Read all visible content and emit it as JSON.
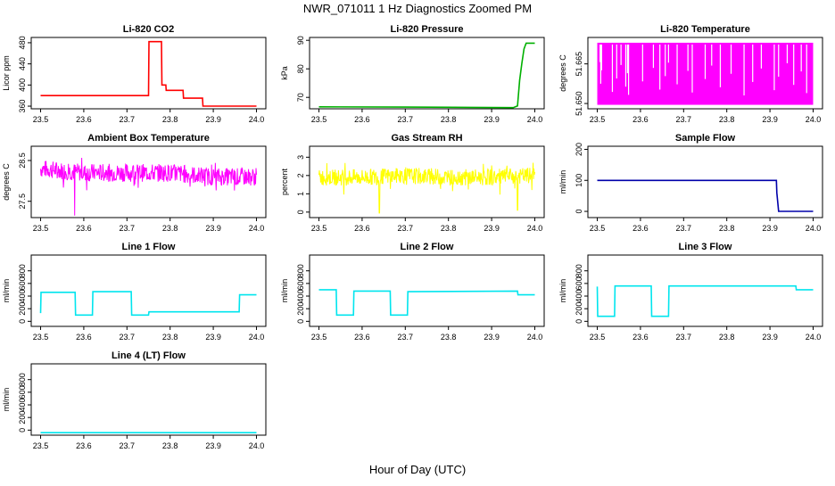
{
  "figure": {
    "title": "NWR_071011  1 Hz Diagnostics Zoomed PM",
    "xlabel": "Hour of Day (UTC)"
  },
  "chart_data": [
    {
      "id": "co2",
      "type": "line",
      "title": "Li-820 CO2",
      "ylabel": "Licor ppm",
      "color": "#ff0000",
      "xlim": [
        23.5,
        24.0
      ],
      "ylim": [
        355,
        490
      ],
      "xticks": [
        "23.5",
        "23.6",
        "23.7",
        "23.8",
        "23.9",
        "24.0"
      ],
      "yticks": [
        360,
        400,
        440,
        480
      ],
      "series": [
        {
          "x": [
            23.5,
            23.75,
            23.751,
            23.78,
            23.781,
            23.79,
            23.791,
            23.83,
            23.831,
            23.875,
            23.876,
            24.0
          ],
          "y": [
            380,
            380,
            482,
            482,
            400,
            400,
            390,
            390,
            375,
            375,
            360,
            360
          ]
        }
      ]
    },
    {
      "id": "pressure",
      "type": "line",
      "title": "Li-820 Pressure",
      "ylabel": "kPa",
      "color": "#00b000",
      "xlim": [
        23.5,
        24.0
      ],
      "ylim": [
        66,
        91
      ],
      "xticks": [
        "23.5",
        "23.6",
        "23.7",
        "23.8",
        "23.9",
        "24.0"
      ],
      "yticks": [
        70,
        80,
        90
      ],
      "series": [
        {
          "x": [
            23.5,
            23.7,
            23.85,
            23.95,
            23.96,
            23.965,
            23.97,
            23.975,
            23.98,
            24.0
          ],
          "y": [
            66.7,
            66.6,
            66.5,
            66.4,
            67,
            76,
            82,
            87,
            89,
            89
          ]
        }
      ]
    },
    {
      "id": "temperature",
      "type": "line",
      "title": "Li-820 Temperature",
      "ylabel": "degrees C",
      "color": "#ff00ff",
      "xlim": [
        23.5,
        24.0
      ],
      "ylim": [
        51.648,
        51.675
      ],
      "xticks": [
        "23.5",
        "23.6",
        "23.7",
        "23.8",
        "23.9",
        "24.0"
      ],
      "yticks": [
        "51.650",
        "51.665"
      ],
      "series": [
        {
          "name": "",
          "x": [],
          "y": []
        }
      ]
    },
    {
      "id": "ambient",
      "type": "line",
      "title": "Ambient Box Temperature",
      "ylabel": "degrees C",
      "color": "#ff00ff",
      "xlim": [
        23.5,
        24.0
      ],
      "ylim": [
        27.1,
        28.85
      ],
      "xticks": [
        "23.5",
        "23.6",
        "23.7",
        "23.8",
        "23.9",
        "24.0"
      ],
      "yticks": [
        "27.5",
        "28.5"
      ],
      "series": [
        {
          "x": [
            23.5,
            23.6,
            23.7,
            23.8,
            23.9,
            24.0
          ],
          "y": [
            28.3,
            28.2,
            28.2,
            28.2,
            28.1,
            28.1
          ]
        }
      ]
    },
    {
      "id": "rh",
      "type": "line",
      "title": "Gas Stream RH",
      "ylabel": "percent",
      "color": "#ffff00",
      "xlim": [
        23.5,
        24.0
      ],
      "ylim": [
        -0.3,
        3.6
      ],
      "xticks": [
        "23.5",
        "23.6",
        "23.7",
        "23.8",
        "23.9",
        "24.0"
      ],
      "yticks": [
        0,
        1,
        2,
        3
      ],
      "series": [
        {
          "x": [
            23.5,
            23.6,
            23.7,
            23.8,
            23.9,
            24.0
          ],
          "y": [
            1.9,
            1.9,
            2.0,
            1.9,
            1.9,
            2.0
          ]
        }
      ]
    },
    {
      "id": "sample",
      "type": "line",
      "title": "Sample Flow",
      "ylabel": "ml/min",
      "color": "#0000aa",
      "xlim": [
        23.5,
        24.0
      ],
      "ylim": [
        -20,
        210
      ],
      "xticks": [
        "23.5",
        "23.6",
        "23.7",
        "23.8",
        "23.9",
        "24.0"
      ],
      "yticks": [
        0,
        100,
        200
      ],
      "series": [
        {
          "x": [
            23.5,
            23.915,
            23.916,
            23.92,
            24.0
          ],
          "y": [
            100,
            100,
            60,
            0,
            0
          ]
        }
      ]
    },
    {
      "id": "line1",
      "type": "line",
      "title": "Line 1 Flow",
      "ylabel": "ml/min",
      "color": "#00e5ee",
      "xlim": [
        23.5,
        24.0
      ],
      "ylim": [
        -80,
        1050
      ],
      "xticks": [
        "23.5",
        "23.6",
        "23.7",
        "23.8",
        "23.9",
        "24.0"
      ],
      "yticks": [
        0,
        200,
        400,
        600,
        800
      ],
      "series": [
        {
          "x": [
            23.5,
            23.501,
            23.58,
            23.581,
            23.62,
            23.621,
            23.71,
            23.711,
            23.75,
            23.751,
            23.96,
            23.961,
            24.0
          ],
          "y": [
            130,
            460,
            460,
            100,
            100,
            470,
            470,
            100,
            100,
            150,
            150,
            420,
            420
          ]
        }
      ]
    },
    {
      "id": "line2",
      "type": "line",
      "title": "Line 2 Flow",
      "ylabel": "ml/min",
      "color": "#00e5ee",
      "xlim": [
        23.5,
        24.0
      ],
      "ylim": [
        -80,
        1050
      ],
      "xticks": [
        "23.5",
        "23.6",
        "23.7",
        "23.8",
        "23.9",
        "24.0"
      ],
      "yticks": [
        0,
        200,
        400,
        600,
        800
      ],
      "series": [
        {
          "x": [
            23.5,
            23.54,
            23.541,
            23.58,
            23.581,
            23.665,
            23.666,
            23.705,
            23.706,
            23.96,
            23.961,
            24.0
          ],
          "y": [
            500,
            500,
            100,
            100,
            480,
            480,
            100,
            100,
            470,
            480,
            420,
            420
          ]
        }
      ]
    },
    {
      "id": "line3",
      "type": "line",
      "title": "Line 3 Flow",
      "ylabel": "ml/min",
      "color": "#00e5ee",
      "xlim": [
        23.5,
        24.0
      ],
      "ylim": [
        -80,
        1050
      ],
      "xticks": [
        "23.5",
        "23.6",
        "23.7",
        "23.8",
        "23.9",
        "24.0"
      ],
      "yticks": [
        0,
        200,
        400,
        600,
        800
      ],
      "series": [
        {
          "x": [
            23.5,
            23.501,
            23.54,
            23.541,
            23.625,
            23.626,
            23.665,
            23.666,
            23.96,
            23.961,
            24.0
          ],
          "y": [
            550,
            80,
            80,
            560,
            560,
            80,
            80,
            560,
            560,
            500,
            500
          ]
        }
      ]
    },
    {
      "id": "line4",
      "type": "line",
      "title": "Line 4 (LT) Flow",
      "ylabel": "ml/min",
      "color": "#00e5ee",
      "xlim": [
        23.5,
        24.0
      ],
      "ylim": [
        -80,
        1050
      ],
      "xticks": [
        "23.5",
        "23.6",
        "23.7",
        "23.8",
        "23.9",
        "24.0"
      ],
      "yticks": [
        0,
        200,
        400,
        600,
        800
      ],
      "series": [
        {
          "x": [
            23.5,
            24.0
          ],
          "y": [
            -40,
            -40
          ]
        }
      ]
    }
  ]
}
